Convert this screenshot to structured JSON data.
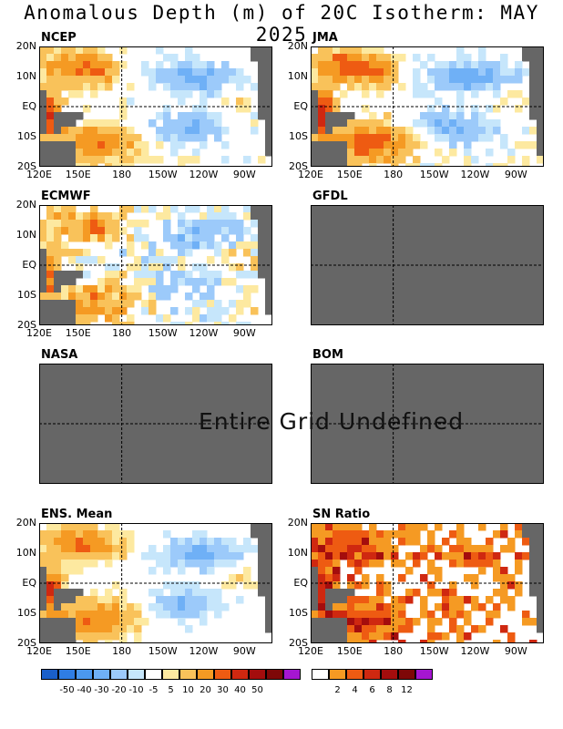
{
  "title": "Anomalous Depth (m) of 20C Isotherm: MAY 2025",
  "undefined_text": "Entire Grid Undefined",
  "chart_data": [
    {
      "type": "heatmap",
      "label": "NCEP",
      "status": "data",
      "pattern": "ncep"
    },
    {
      "type": "heatmap",
      "label": "JMA",
      "status": "data",
      "pattern": "jma"
    },
    {
      "type": "heatmap",
      "label": "ECMWF",
      "status": "data",
      "pattern": "ecmwf"
    },
    {
      "type": "heatmap",
      "label": "GFDL",
      "status": "undefined"
    },
    {
      "type": "heatmap",
      "label": "NASA",
      "status": "undefined"
    },
    {
      "type": "heatmap",
      "label": "BOM",
      "status": "undefined"
    },
    {
      "type": "heatmap",
      "label": "ENS. Mean",
      "status": "data",
      "pattern": "ens"
    },
    {
      "type": "heatmap",
      "label": "SN Ratio",
      "status": "data",
      "pattern": "sn"
    }
  ],
  "axes": {
    "x_ticks": [
      "120E",
      "150E",
      "180",
      "150W",
      "120W",
      "90W"
    ],
    "y_ticks": [
      "20N",
      "10N",
      "EQ",
      "10S",
      "20S"
    ]
  },
  "colorbar_anomaly": {
    "colors": [
      "#1a5fc9",
      "#2f7de3",
      "#4b98ef",
      "#6fb0f6",
      "#9ccafa",
      "#c6e6fb",
      "#ffffff",
      "#fde9a0",
      "#f9c25a",
      "#f59a23",
      "#ee5b12",
      "#cf2810",
      "#a40d0d",
      "#7e0707",
      "#a516d1"
    ],
    "labels": [
      "-50",
      "-40",
      "-30",
      "-20",
      "-10",
      "-5",
      "5",
      "10",
      "20",
      "30",
      "40",
      "50"
    ]
  },
  "colorbar_sn": {
    "colors": [
      "#ffffff",
      "#f59a23",
      "#ee5b12",
      "#cf2810",
      "#a40d0d",
      "#7e0707",
      "#a516d1"
    ],
    "labels": [
      "2",
      "4",
      "6",
      "8",
      "12"
    ]
  },
  "land_color": "#666666",
  "undefined_color": "#666666"
}
